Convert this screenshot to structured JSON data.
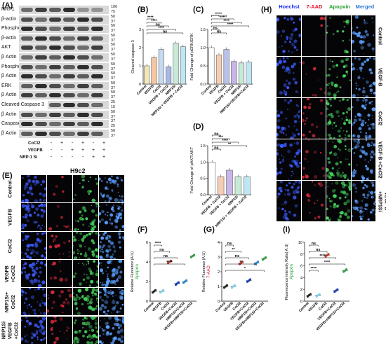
{
  "panels": {
    "A": "(A)",
    "B": "(B)",
    "C": "(C)",
    "D": "(D)",
    "E": "(E)",
    "F": "(F)",
    "G": "(G)",
    "H": "(H)",
    "I": "(I)"
  },
  "blot": {
    "rows": [
      {
        "name": "NRP1",
        "kda": [
          "100",
          "75"
        ]
      },
      {
        "name": "β-actin",
        "kda": [
          "50",
          "37"
        ]
      },
      {
        "name": "Phospho-AKT",
        "kda": [
          "50",
          "37"
        ]
      },
      {
        "name": "β-actin",
        "kda": [
          "50",
          "37"
        ]
      },
      {
        "name": "AKT",
        "kda": [
          "50",
          "37"
        ]
      },
      {
        "name": "β Actin",
        "kda": [
          "50",
          "37"
        ]
      },
      {
        "name": "Phospho-ERK",
        "kda": [
          "50",
          "37"
        ]
      },
      {
        "name": "β Actin",
        "kda": [
          "50",
          "37"
        ]
      },
      {
        "name": "ERK",
        "kda": [
          "50",
          "37"
        ]
      },
      {
        "name": "β Actin",
        "kda": [
          "50",
          "37"
        ]
      },
      {
        "name": "Cleaved Caspase 3",
        "kda": [
          "25",
          "15"
        ]
      },
      {
        "name": "β Actin",
        "kda": [
          "50",
          "37"
        ]
      },
      {
        "name": "Caspase 3",
        "kda": [
          "37",
          "25"
        ]
      },
      {
        "name": "β Actin",
        "kda": [
          "50",
          "37"
        ]
      }
    ],
    "treatments": [
      {
        "label": "CoCl2",
        "signs": [
          "-",
          "+",
          "-",
          "+",
          "-",
          "+"
        ]
      },
      {
        "label": "VEGFB",
        "signs": [
          "-",
          "-",
          "+",
          "+",
          "+",
          "+"
        ]
      },
      {
        "label": "NRP-1 Si",
        "signs": [
          "-",
          "-",
          "-",
          "-",
          "+",
          "+"
        ]
      }
    ]
  },
  "micrograph_E": {
    "title": "H9c2",
    "row_labels": [
      "Control",
      "VEGFB",
      "CoCl2",
      "VEGFB +CoCl2",
      "NRP1Si+ CoCl2",
      "NRP1Si VEGFB +CoCl2"
    ],
    "overlay_labels": [
      "VEGFB",
      "CoCl2",
      "NRP1Si",
      "VEGFB"
    ]
  },
  "micrograph_H": {
    "columns": [
      "Hoechst",
      "7-AAD",
      "Apopxin",
      "Merged"
    ],
    "column_colors": [
      "#1a2cff",
      "#e0102a",
      "#1d9e2b",
      "#2a7bd6"
    ],
    "row_labels": [
      "Control",
      "VEGF-B",
      "CoCl2",
      "VEGF-B +CoCl2",
      "VEGF-B +NRP1Si +CoCl2"
    ]
  },
  "chart_data": [
    {
      "panel": "B",
      "type": "bar",
      "ylabel": "Cleaved caspase 3",
      "ylim": [
        0,
        3
      ],
      "yticks": [
        "0",
        "1",
        "2",
        "3"
      ],
      "categories": [
        "Control",
        "VEGFB",
        "CoCl2",
        "VEGFB + CoCl2",
        "NRP1Si",
        "NRP1Si + VEGFB + CoCl2"
      ],
      "values": [
        1.0,
        1.45,
        1.9,
        0.95,
        2.25,
        2.05
      ],
      "colors": [
        "#f2e7b9",
        "#f6c7a3",
        "#c6d9ef",
        "#a7b8e4",
        "#c6e9d8",
        "#bfe6f2"
      ],
      "annotations": [
        "****",
        "****",
        "ns",
        "****",
        "ns"
      ]
    },
    {
      "panel": "C",
      "type": "bar",
      "ylabel": "Fold Change of pERK/ERK",
      "ylim": [
        0,
        1.5
      ],
      "yticks": [
        "0.0",
        "0.5",
        "1.0",
        "1.5"
      ],
      "categories": [
        "Control",
        "VEGFB",
        "CoCl2",
        "VEGFB + CoCl2",
        "NRP1Si",
        "NRP1Si+VEGFB+CoCl2"
      ],
      "values": [
        1.0,
        0.8,
        0.95,
        0.62,
        0.58,
        0.6
      ],
      "colors": [
        "#ffffff",
        "#f5cdb5",
        "#b8c2ea",
        "#c9b6e8",
        "#c6e9d8",
        "#bfe6f2"
      ],
      "annotations": [
        "*",
        "****",
        "****",
        "****",
        "****",
        "ns",
        "ns"
      ]
    },
    {
      "panel": "D",
      "type": "bar",
      "ylabel": "Fold Change of pAKT/AKT",
      "ylim": [
        0,
        1.5
      ],
      "yticks": [
        "0.0",
        "0.5",
        "1.0",
        "1.5"
      ],
      "categories": [
        "Control",
        "VEGFB + CoCl2",
        "VEGFB + CoCl2",
        "NRP1Si",
        "NRP1Si + VEGFB + CoCl2"
      ],
      "values": [
        1.0,
        0.55,
        0.75,
        0.55,
        0.55
      ],
      "colors": [
        "#ffffff",
        "#f5cdb5",
        "#c9b6e8",
        "#c6e9d8",
        "#bfe6f2"
      ],
      "annotations": [
        "ns",
        "***",
        "****",
        "**",
        "ns"
      ]
    },
    {
      "panel": "F",
      "type": "scatter",
      "ylabel": "Relative Fluorence (A.U)",
      "ylabel_colored": "Apopxin",
      "ylim": [
        0,
        6
      ],
      "yticks": [
        "0",
        "2",
        "4",
        "6"
      ],
      "categories": [
        "Control",
        "VEGFB",
        "CoCl2",
        "VEGFB+CoCl2",
        "NRP1Si+CoCl2",
        "VEGFB+NRP1Si+CoCl2"
      ],
      "values": [
        1.0,
        1.0,
        4.0,
        1.8,
        2.0,
        4.6
      ],
      "colors": [
        "#222222",
        "#7fd0e8",
        "#c0392b",
        "#1a3fb5",
        "#2e8bc0",
        "#3aa04a"
      ],
      "annotations": [
        "****",
        "ns",
        "ns",
        "****"
      ]
    },
    {
      "panel": "G",
      "type": "scatter",
      "ylabel": "Relative Fluorence (A.U)",
      "ylabel_colored": "7-AAD",
      "ylim": [
        0,
        4
      ],
      "yticks": [
        "0",
        "1",
        "2",
        "3",
        "4"
      ],
      "categories": [
        "Control",
        "VEGFB",
        "CoCl2",
        "VEGFB+CoCl2",
        "NRP1Si+CoCl2",
        "VEGFB+NRP1Si+CoCl2"
      ],
      "values": [
        1.0,
        1.0,
        2.6,
        1.4,
        2.6,
        2.9
      ],
      "colors": [
        "#222222",
        "#7fd0e8",
        "#c0392b",
        "#1a3fb5",
        "#2e8bc0",
        "#3aa04a"
      ],
      "annotations": [
        "*",
        "**",
        "ns",
        "**",
        "ns"
      ]
    },
    {
      "panel": "I",
      "type": "scatter",
      "ylabel": "Fluorescence Intensity Ratio( A.U)",
      "ylabel_colored": "Apopxin",
      "ylim": [
        0,
        10
      ],
      "yticks": [
        "0",
        "2",
        "4",
        "6",
        "8",
        "10"
      ],
      "categories": [
        "Control",
        "VEGFB",
        "CoCl2",
        "VEGFB+CoCl2",
        "VEGFB+NRP1Si+CoCl2"
      ],
      "values": [
        1.0,
        1.0,
        7.8,
        1.8,
        5.2
      ],
      "colors": [
        "#222222",
        "#7fd0e8",
        "#c0392b",
        "#1a3fb5",
        "#3aa04a"
      ],
      "annotations": [
        "****",
        "****",
        "****",
        "ns",
        "ns"
      ]
    }
  ]
}
